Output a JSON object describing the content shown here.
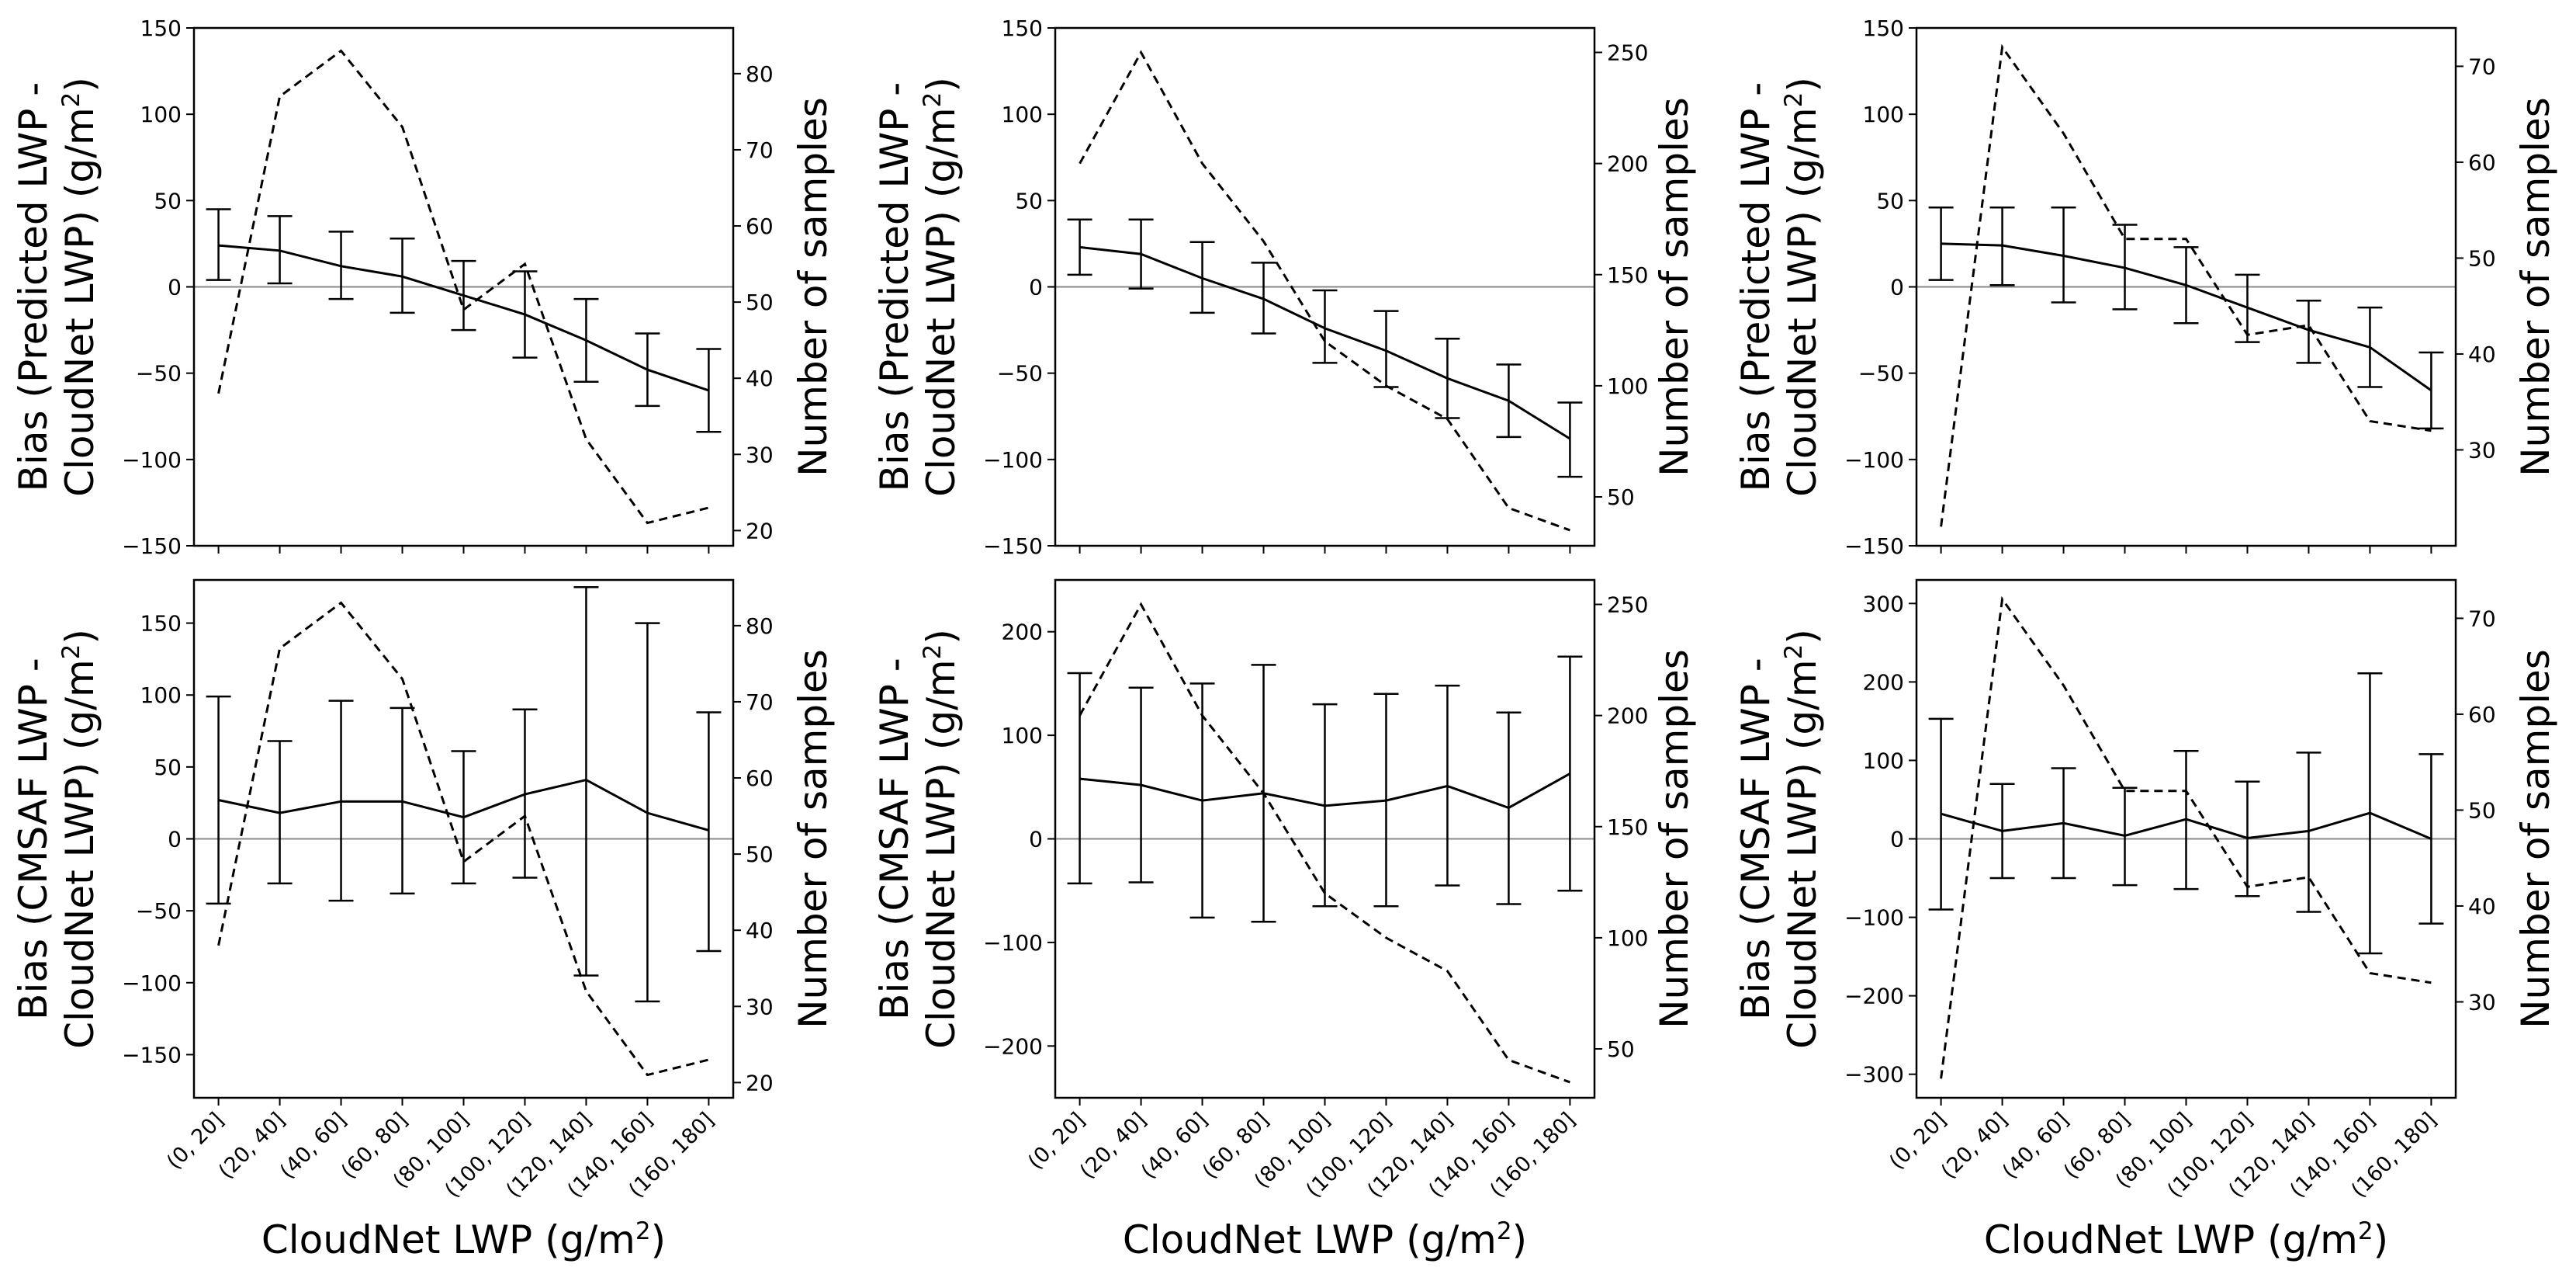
{
  "categories": [
    "(0, 20]",
    "(20, 40]",
    "(40, 60]",
    "(60, 80]",
    "(80, 100]",
    "(100, 120]",
    "(120, 140]",
    "(140, 160]",
    "(160, 180]"
  ],
  "xlabel": "CloudNet LWP (g/m²)",
  "chart_data": [
    {
      "type": "line",
      "row": 0,
      "col": 0,
      "ylabel": "Bias (Predicted LWP -\nCloudNet LWP) (g/m²)",
      "y2label": "Number of samples",
      "ylim": [
        -150,
        150
      ],
      "yticks": [
        -150,
        -100,
        -50,
        0,
        50,
        100,
        150
      ],
      "y2lim": [
        18,
        86
      ],
      "y2ticks": [
        20,
        30,
        40,
        50,
        60,
        70,
        80
      ],
      "bias": [
        24,
        21,
        12,
        6,
        -5,
        -16,
        -31,
        -48,
        -60
      ],
      "err_low": [
        4,
        2,
        -7,
        -15,
        -25,
        -41,
        -55,
        -69,
        -84
      ],
      "err_high": [
        45,
        41,
        32,
        28,
        15,
        9,
        -7,
        -27,
        -36
      ],
      "samples": [
        38,
        77,
        83,
        73,
        49,
        55,
        32,
        21,
        23
      ]
    },
    {
      "type": "line",
      "row": 0,
      "col": 1,
      "ylabel": "Bias (Predicted LWP -\nCloudNet LWP) (g/m²)",
      "y2label": "Number of samples",
      "ylim": [
        -150,
        150
      ],
      "yticks": [
        -150,
        -100,
        -50,
        0,
        50,
        100,
        150
      ],
      "y2lim": [
        28,
        261
      ],
      "y2ticks": [
        50,
        100,
        150,
        200,
        250
      ],
      "bias": [
        23,
        19,
        5,
        -7,
        -24,
        -37,
        -53,
        -66,
        -88
      ],
      "err_low": [
        7,
        -1,
        -15,
        -27,
        -44,
        -58,
        -76,
        -87,
        -110
      ],
      "err_high": [
        39,
        39,
        26,
        14,
        -2,
        -14,
        -30,
        -45,
        -67
      ],
      "samples": [
        200,
        250,
        200,
        165,
        120,
        100,
        85,
        45,
        35
      ]
    },
    {
      "type": "line",
      "row": 0,
      "col": 2,
      "ylabel": "Bias (Predicted LWP -\nCloudNet LWP) (g/m²)",
      "y2label": "Number of samples",
      "ylim": [
        -150,
        150
      ],
      "yticks": [
        -150,
        -100,
        -50,
        0,
        50,
        100,
        150
      ],
      "y2lim": [
        20,
        74
      ],
      "y2ticks": [
        30,
        40,
        50,
        60,
        70
      ],
      "bias": [
        25,
        24,
        18,
        11,
        1,
        -12,
        -25,
        -35,
        -60
      ],
      "err_low": [
        4,
        1,
        -9,
        -13,
        -21,
        -32,
        -44,
        -58,
        -82
      ],
      "err_high": [
        46,
        46,
        46,
        36,
        23,
        7,
        -8,
        -12,
        -38
      ],
      "samples": [
        22,
        72,
        63,
        52,
        52,
        42,
        43,
        33,
        32
      ]
    },
    {
      "type": "line",
      "row": 1,
      "col": 0,
      "ylabel": "Bias (CMSAF LWP -\nCloudNet LWP) (g/m²)",
      "y2label": "Number of samples",
      "ylim": [
        -180,
        180
      ],
      "yticks": [
        -150,
        -100,
        -50,
        0,
        50,
        100,
        150
      ],
      "y2lim": [
        18,
        86
      ],
      "y2ticks": [
        20,
        30,
        40,
        50,
        60,
        70,
        80
      ],
      "bias": [
        27,
        18,
        26,
        26,
        15,
        31,
        41,
        18,
        6
      ],
      "err_low": [
        -45,
        -31,
        -43,
        -38,
        -31,
        -27,
        -95,
        -113,
        -78
      ],
      "err_high": [
        99,
        68,
        96,
        91,
        61,
        90,
        175,
        150,
        88
      ],
      "samples": [
        38,
        77,
        83,
        73,
        49,
        55,
        32,
        21,
        23
      ]
    },
    {
      "type": "line",
      "row": 1,
      "col": 1,
      "ylabel": "Bias (CMSAF LWP -\nCloudNet LWP) (g/m²)",
      "y2label": "Number of samples",
      "ylim": [
        -250,
        250
      ],
      "yticks": [
        -200,
        -100,
        0,
        100,
        200
      ],
      "y2lim": [
        28,
        261
      ],
      "y2ticks": [
        50,
        100,
        150,
        200,
        250
      ],
      "bias": [
        58,
        52,
        37,
        44,
        32,
        37,
        51,
        30,
        63
      ],
      "err_low": [
        -43,
        -42,
        -76,
        -80,
        -65,
        -65,
        -45,
        -63,
        -50
      ],
      "err_high": [
        160,
        146,
        150,
        168,
        130,
        140,
        148,
        122,
        176
      ],
      "samples": [
        200,
        250,
        200,
        165,
        120,
        100,
        85,
        45,
        35
      ]
    },
    {
      "type": "line",
      "row": 1,
      "col": 2,
      "ylabel": "Bias (CMSAF LWP -\nCloudNet LWP) (g/m²)",
      "y2label": "Number of samples",
      "ylim": [
        -330,
        330
      ],
      "yticks": [
        -300,
        -200,
        -100,
        0,
        100,
        200,
        300
      ],
      "y2lim": [
        20,
        74
      ],
      "y2ticks": [
        30,
        40,
        50,
        60,
        70
      ],
      "bias": [
        32,
        10,
        20,
        4,
        25,
        1,
        10,
        33,
        0
      ],
      "err_low": [
        -90,
        -50,
        -50,
        -59,
        -64,
        -73,
        -93,
        -146,
        -108
      ],
      "err_high": [
        153,
        70,
        90,
        65,
        112,
        73,
        110,
        211,
        108
      ],
      "samples": [
        22,
        72,
        63,
        52,
        52,
        42,
        43,
        33,
        32
      ]
    }
  ]
}
